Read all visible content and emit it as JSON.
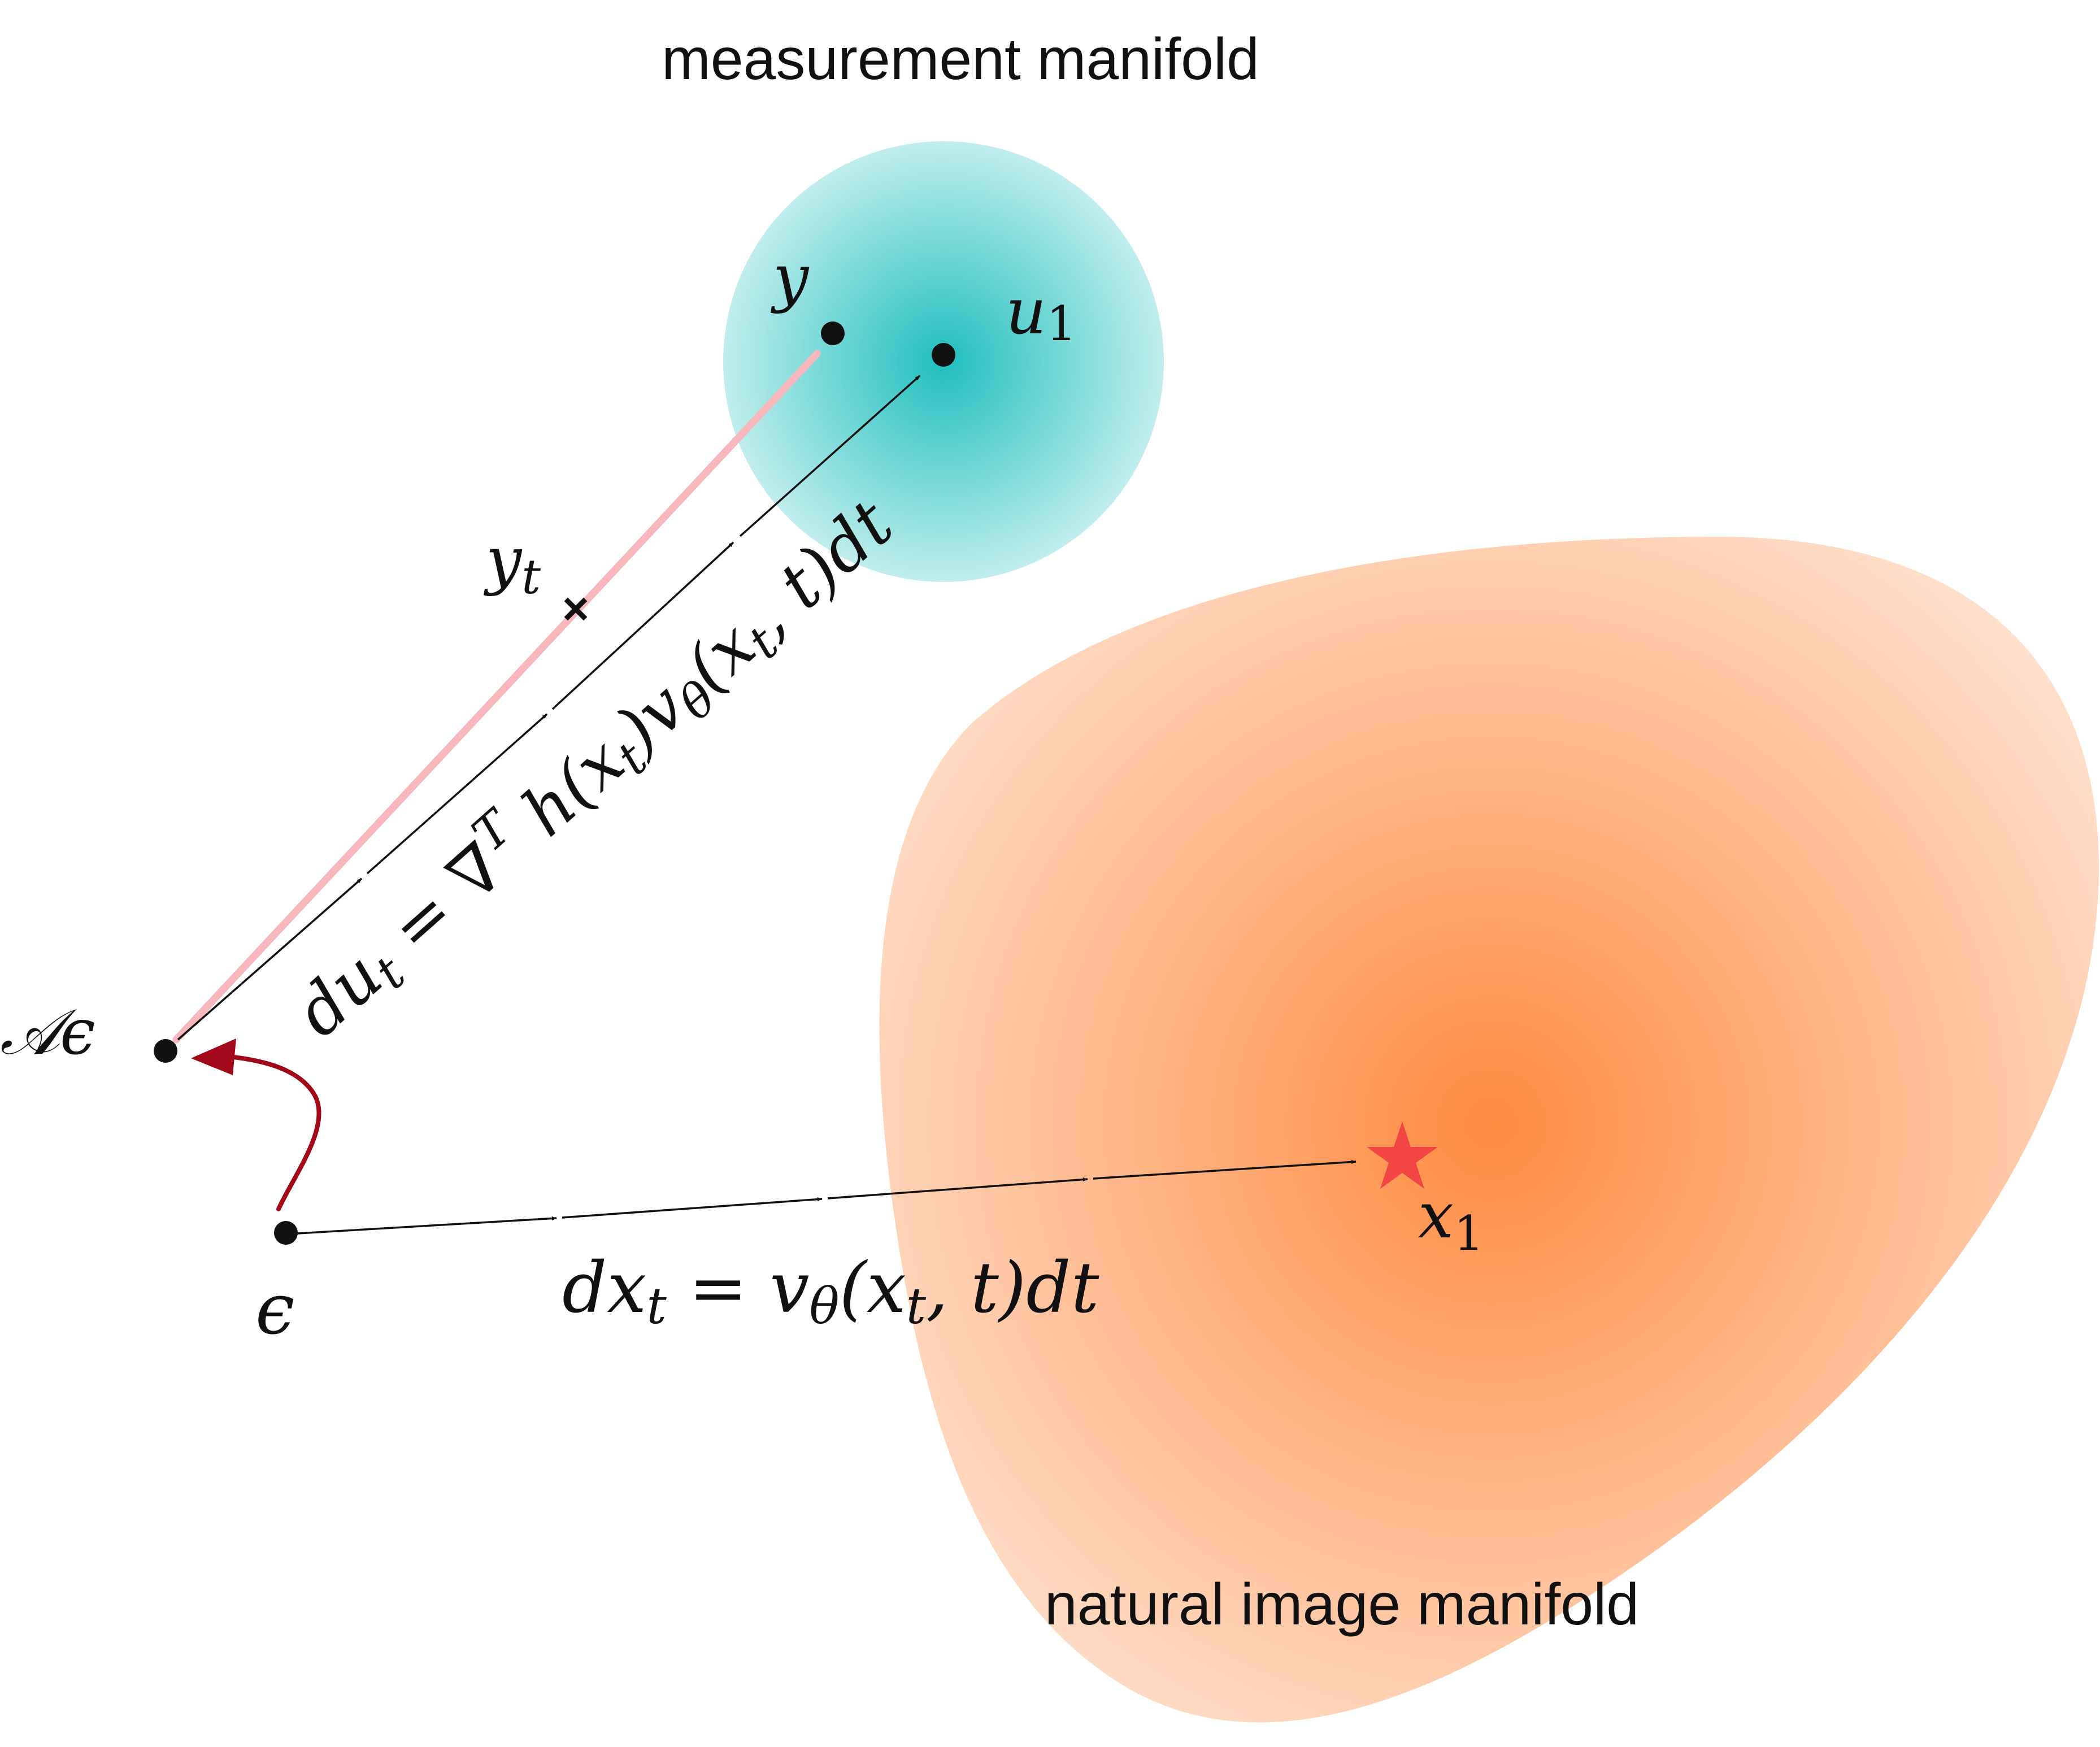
{
  "labels": {
    "measurement_manifold": "measurement manifold",
    "natural_manifold": "natural image manifold"
  },
  "points": {
    "y": "y",
    "u1_base": "u",
    "u1_sub": "1",
    "yt_base": "y",
    "yt_sub": "t",
    "a_eps_A": "𝒜",
    "a_eps_e": "ϵ",
    "eps": "ϵ",
    "x1_base": "x",
    "x1_sub": "1"
  },
  "equations": {
    "measurement": {
      "d": "du",
      "t1": "t",
      "eq": " = ∇",
      "T": "T",
      "h": " h(x",
      "t2": "t",
      "v": ")v",
      "theta": "θ",
      "xp": "(x",
      "t3": "t",
      "rest": ", t)dt"
    },
    "natural": {
      "d": "dx",
      "t1": "t",
      "eq": " = v",
      "theta": "θ",
      "xp": "(x",
      "t2": "t",
      "rest": ", t)dt"
    }
  },
  "colors": {
    "measurement_fill": "#1fbfbf",
    "natural_fill": "#ff8a40",
    "pink_path": "#f7b7bc",
    "red_arrow": "#a3071a",
    "star": "#f24545",
    "ink": "#111111"
  }
}
